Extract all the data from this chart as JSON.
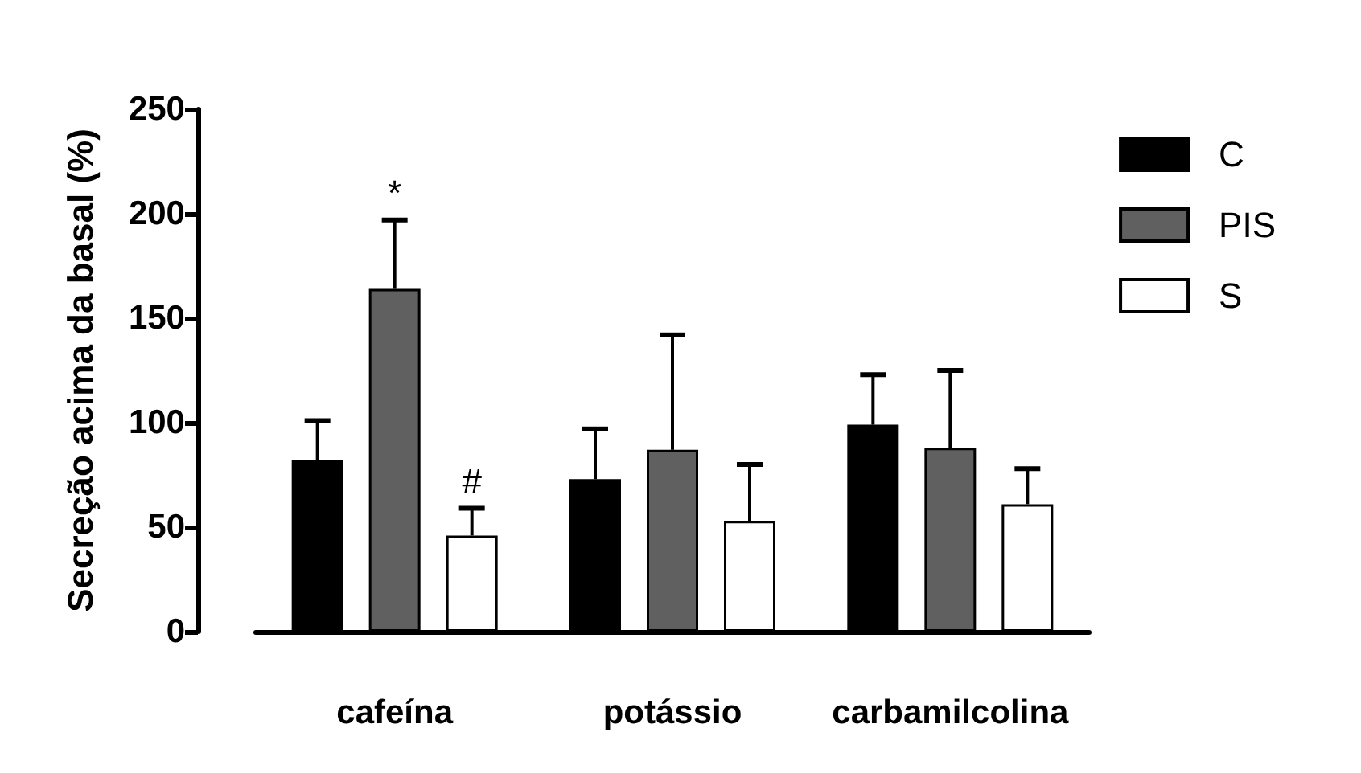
{
  "chart_data": {
    "type": "bar",
    "ylabel": "Secreção acima da basal (%)",
    "categories": [
      "cafeína",
      "potássio",
      "carbamilcolina"
    ],
    "series": [
      {
        "name": "C",
        "color": "#000000",
        "values": [
          82,
          73,
          99
        ],
        "errors": [
          [
            82,
            101
          ],
          [
            73,
            97
          ],
          [
            99,
            123
          ]
        ]
      },
      {
        "name": "PIS",
        "color": "#606060",
        "values": [
          164,
          87,
          88
        ],
        "errors": [
          [
            164,
            197
          ],
          [
            87,
            142
          ],
          [
            88,
            125
          ]
        ]
      },
      {
        "name": "S",
        "color": "#ffffff",
        "values": [
          46,
          53,
          61
        ],
        "errors": [
          [
            46,
            59
          ],
          [
            53,
            80
          ],
          [
            61,
            78
          ]
        ]
      }
    ],
    "ylim": [
      0,
      250
    ],
    "yticks": [
      0,
      50,
      100,
      150,
      200,
      250
    ],
    "grid": false,
    "legend": "top right",
    "annotations": [
      {
        "text": "*",
        "x": "cafeína",
        "y": 197
      },
      "#"
    ]
  }
}
